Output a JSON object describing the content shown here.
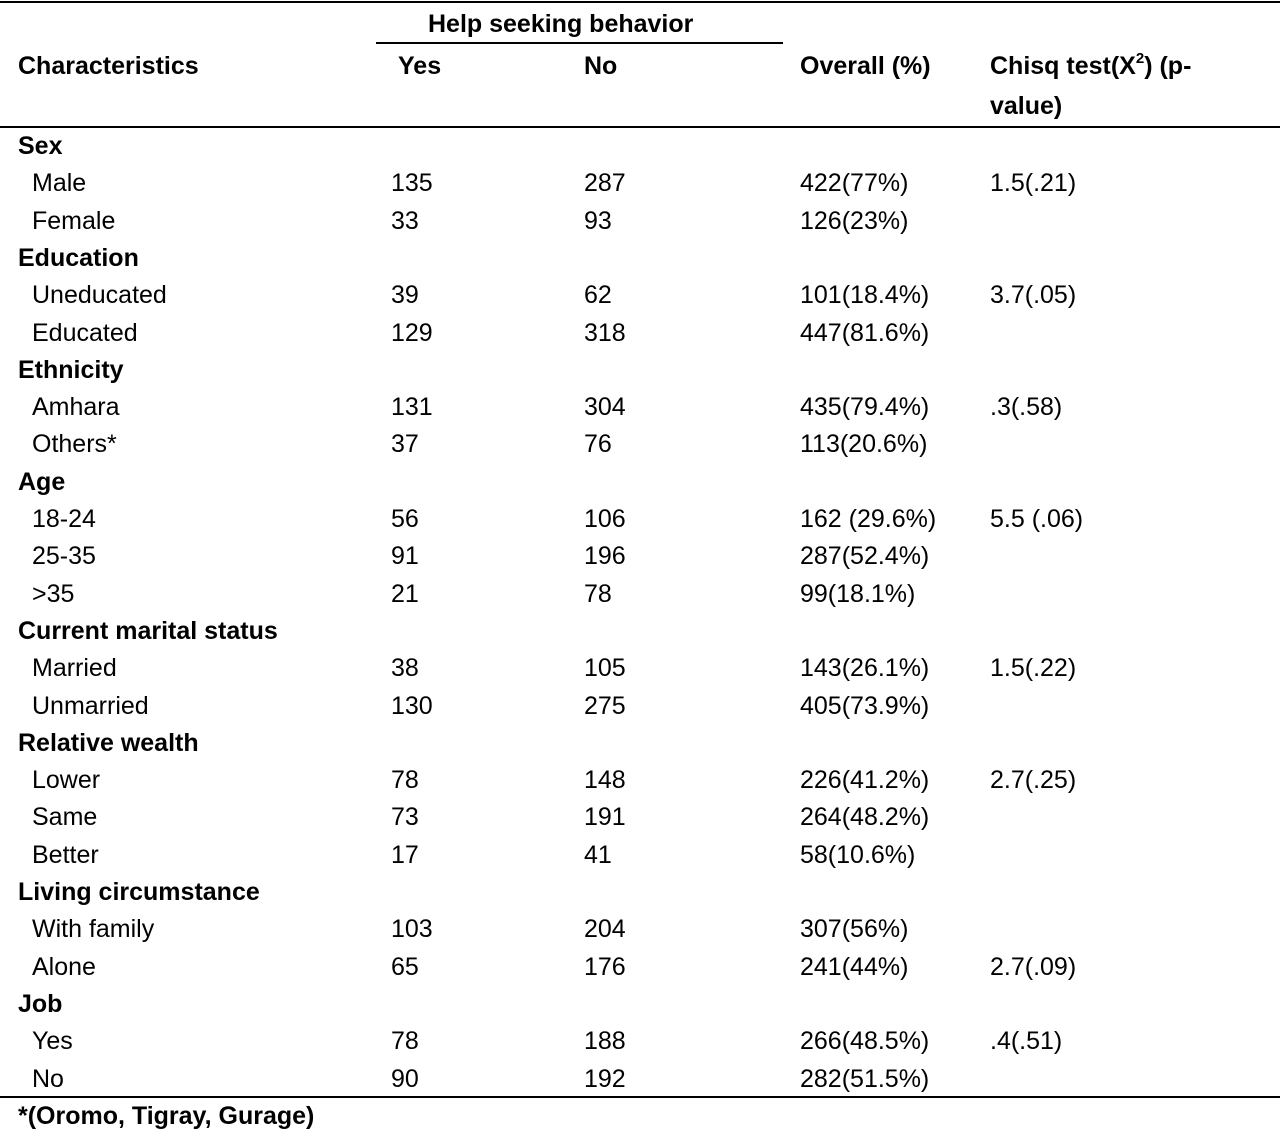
{
  "table": {
    "group_header": "Help seeking behavior",
    "headers": {
      "characteristics": "Characteristics",
      "yes": "Yes",
      "no": "No",
      "overall": "Overall (%)",
      "chisq_pre": "Chisq test(X",
      "chisq_sup": "2",
      "chisq_post": ") (p-",
      "chisq_line2": "value)"
    },
    "rows": [
      {
        "type": "section",
        "label": "Sex"
      },
      {
        "type": "data",
        "label": "Male",
        "yes": "135",
        "no": "287",
        "overall": "422(77%)",
        "chisq": "1.5(.21)"
      },
      {
        "type": "data",
        "label": "Female",
        "yes": "33",
        "no": "93",
        "overall": "126(23%)",
        "chisq": ""
      },
      {
        "type": "section",
        "label": "Education"
      },
      {
        "type": "data",
        "label": "Uneducated",
        "yes": "39",
        "no": "62",
        "overall": "101(18.4%)",
        "chisq": "3.7(.05)"
      },
      {
        "type": "data",
        "label": "Educated",
        "yes": "129",
        "no": "318",
        "overall": "447(81.6%)",
        "chisq": ""
      },
      {
        "type": "section",
        "label": "Ethnicity"
      },
      {
        "type": "data",
        "label": "Amhara",
        "yes": "131",
        "no": "304",
        "overall": "435(79.4%)",
        "chisq": ".3(.58)"
      },
      {
        "type": "data",
        "label": "Others*",
        "yes": "37",
        "no": "76",
        "overall": "113(20.6%)",
        "chisq": ""
      },
      {
        "type": "section",
        "label": "Age"
      },
      {
        "type": "data",
        "label": "18-24",
        "yes": "56",
        "no": "106",
        "overall": "162 (29.6%)",
        "chisq": "5.5 (.06)"
      },
      {
        "type": "data",
        "label": "25-35",
        "yes": "91",
        "no": "196",
        "overall": "287(52.4%)",
        "chisq": ""
      },
      {
        "type": "data",
        "label": ">35",
        "yes": "21",
        "no": "78",
        "overall": "99(18.1%)",
        "chisq": ""
      },
      {
        "type": "section",
        "label": "Current marital status"
      },
      {
        "type": "data",
        "label": "Married",
        "yes": "38",
        "no": "105",
        "overall": "143(26.1%)",
        "chisq": "1.5(.22)"
      },
      {
        "type": "data",
        "label": "Unmarried",
        "yes": "130",
        "no": "275",
        "overall": "405(73.9%)",
        "chisq": ""
      },
      {
        "type": "section",
        "label": "Relative wealth"
      },
      {
        "type": "data",
        "label": "Lower",
        "yes": "78",
        "no": "148",
        "overall": "226(41.2%)",
        "chisq": "2.7(.25)"
      },
      {
        "type": "data",
        "label": "Same",
        "yes": "73",
        "no": "191",
        "overall": "264(48.2%)",
        "chisq": ""
      },
      {
        "type": "data",
        "label": "Better",
        "yes": "17",
        "no": "41",
        "overall": "58(10.6%)",
        "chisq": ""
      },
      {
        "type": "section",
        "label": "Living circumstance"
      },
      {
        "type": "data",
        "label": "With family",
        "yes": "103",
        "no": "204",
        "overall": "307(56%)",
        "chisq": ""
      },
      {
        "type": "data",
        "label": "Alone",
        "yes": "65",
        "no": "176",
        "overall": "241(44%)",
        "chisq": "2.7(.09)"
      },
      {
        "type": "section",
        "label": "Job"
      },
      {
        "type": "data",
        "label": "Yes",
        "yes": "78",
        "no": "188",
        "overall": "266(48.5%)",
        "chisq": ".4(.51)"
      },
      {
        "type": "data",
        "label": "No",
        "yes": "90",
        "no": "192",
        "overall": "282(51.5%)",
        "chisq": ""
      }
    ],
    "footnote": "*(Oromo, Tigray, Gurage)"
  }
}
